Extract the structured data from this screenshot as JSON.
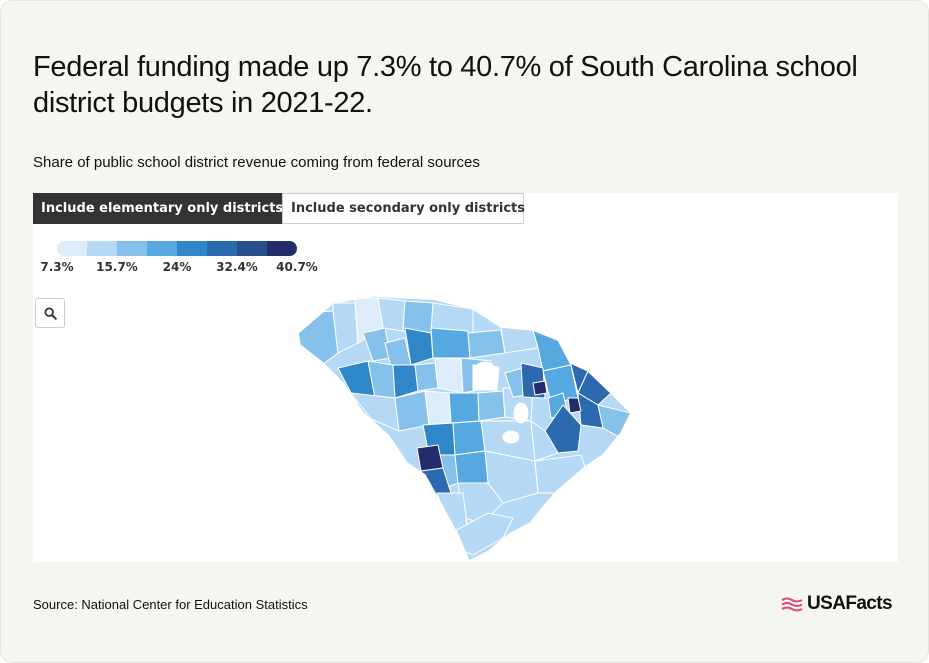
{
  "title": "Federal funding made up 7.3% to 40.7% of South Carolina school district budgets in 2021-22.",
  "subtitle": "Share of public school district revenue coming from federal sources",
  "toggle": {
    "active_label": "Include elementary only districts",
    "inactive_label": "Include secondary only districts"
  },
  "legend": {
    "colors": [
      "#ddecfa",
      "#b5d8f4",
      "#86c1ec",
      "#55a9e0",
      "#2f86c9",
      "#2b6aaf",
      "#28508f",
      "#242d6b"
    ],
    "labels": [
      "7.3%",
      "15.7%",
      "24%",
      "32.4%",
      "40.7%"
    ]
  },
  "search": {
    "icon": "search-icon"
  },
  "source": "Source: National Center for Education Statistics",
  "logo": {
    "text": "USAFacts",
    "icon": "usafacts-flag-icon",
    "color": "#e0457b"
  }
}
